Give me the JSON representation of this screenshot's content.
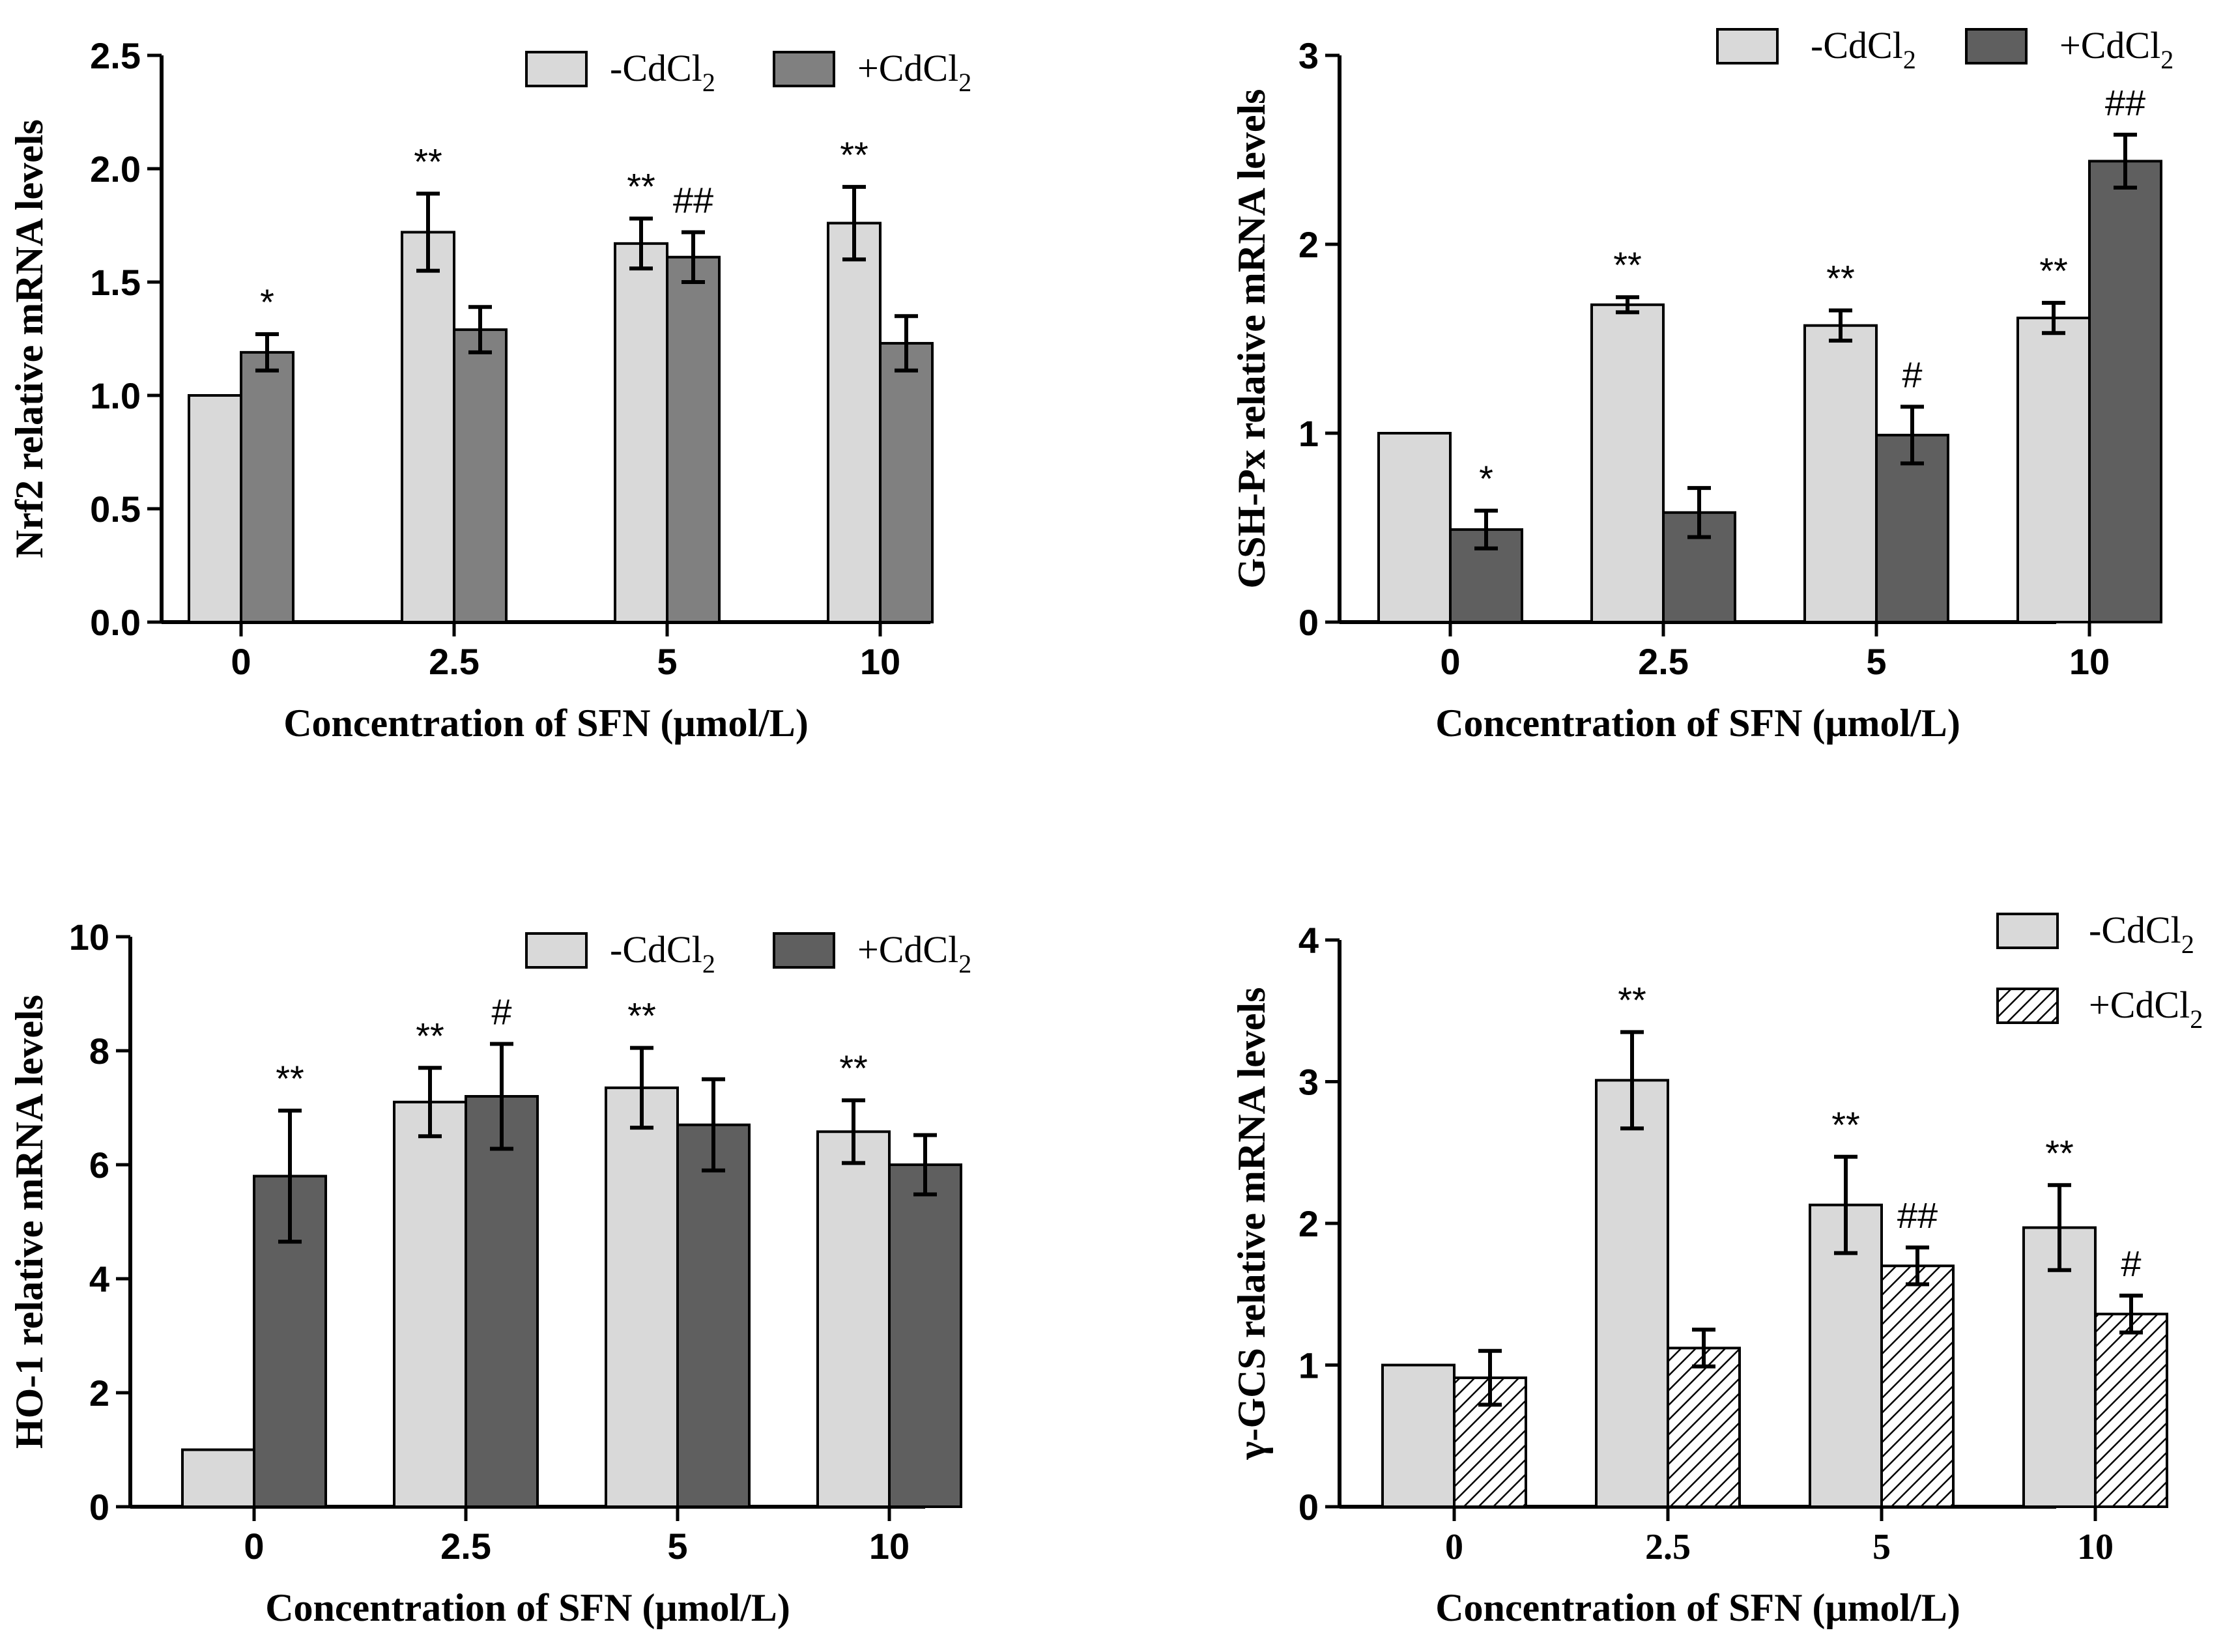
{
  "colors": {
    "light_bar": "#d9d9d9",
    "mid_bar": "#808080",
    "dark_bar": "#5f5f5f",
    "axis": "#000000"
  },
  "chart_data": [
    {
      "id": "nrf2",
      "type": "bar",
      "ylabel": "Nrf2 relative mRNA levels",
      "xlabel": "Concentration of SFN (μmol/L)",
      "categories": [
        "0",
        "2.5",
        "5",
        "10"
      ],
      "ylim": [
        0,
        2.5
      ],
      "yticks": [
        "0.0",
        "0.5",
        "1.0",
        "1.5",
        "2.0",
        "2.5"
      ],
      "ytick_values": [
        0,
        0.5,
        1.0,
        1.5,
        2.0,
        2.5
      ],
      "legend_position": "top-right",
      "series": [
        {
          "name": "-CdCl",
          "sub": "2",
          "style": "light",
          "values": [
            1.0,
            1.72,
            1.67,
            1.76
          ],
          "errors": [
            0,
            0.17,
            0.11,
            0.16
          ],
          "annotations": [
            "",
            "**",
            "**",
            "**"
          ]
        },
        {
          "name": "+CdCl",
          "sub": "2",
          "style": "mid",
          "values": [
            1.19,
            1.29,
            1.61,
            1.23
          ],
          "errors": [
            0.08,
            0.1,
            0.11,
            0.12
          ],
          "annotations": [
            "*",
            "",
            "##",
            ""
          ]
        }
      ]
    },
    {
      "id": "gshpx",
      "type": "bar",
      "ylabel": "GSH-Px relative mRNA levels",
      "xlabel": "Concentration of SFN (μmol/L)",
      "categories": [
        "0",
        "2.5",
        "5",
        "10"
      ],
      "ylim": [
        0,
        3
      ],
      "yticks": [
        "0",
        "1",
        "2",
        "3"
      ],
      "ytick_values": [
        0,
        1,
        2,
        3
      ],
      "legend_position": "top-right",
      "series": [
        {
          "name": "-CdCl",
          "sub": "2",
          "style": "light",
          "values": [
            1.0,
            1.68,
            1.57,
            1.61
          ],
          "errors": [
            0,
            0.04,
            0.08,
            0.08
          ],
          "annotations": [
            "",
            "**",
            "**",
            "**"
          ]
        },
        {
          "name": "+CdCl",
          "sub": "2",
          "style": "dark",
          "values": [
            0.49,
            0.58,
            0.99,
            2.44
          ],
          "errors": [
            0.1,
            0.13,
            0.15,
            0.14
          ],
          "annotations": [
            "*",
            "",
            "#",
            "##"
          ]
        }
      ]
    },
    {
      "id": "ho1",
      "type": "bar",
      "ylabel": "HO-1 relative mRNA levels",
      "xlabel": "Concentration of SFN (μmol/L)",
      "categories": [
        "0",
        "2.5",
        "5",
        "10"
      ],
      "ylim": [
        0,
        10
      ],
      "yticks": [
        "0",
        "2",
        "4",
        "6",
        "8",
        "10"
      ],
      "ytick_values": [
        0,
        2,
        4,
        6,
        8,
        10
      ],
      "legend_position": "top-right",
      "series": [
        {
          "name": "-CdCl",
          "sub": "2",
          "style": "light",
          "values": [
            1.0,
            7.1,
            7.35,
            6.58
          ],
          "errors": [
            0,
            0.6,
            0.7,
            0.55
          ],
          "annotations": [
            "",
            "**",
            "**",
            "**"
          ]
        },
        {
          "name": "+CdCl",
          "sub": "2",
          "style": "dark",
          "values": [
            5.8,
            7.2,
            6.7,
            6.0
          ],
          "errors": [
            1.15,
            0.92,
            0.8,
            0.52
          ],
          "annotations": [
            "**",
            "#",
            "",
            ""
          ]
        }
      ]
    },
    {
      "id": "gcs",
      "type": "bar",
      "ylabel": "γ-GCS relative mRNA levels",
      "xlabel": "Concentration of SFN (μmol/L)",
      "categories": [
        "0",
        "2.5",
        "5",
        "10"
      ],
      "ylim": [
        0,
        4
      ],
      "yticks": [
        "0",
        "1",
        "2",
        "3",
        "4"
      ],
      "ytick_values": [
        0,
        1,
        2,
        3,
        4
      ],
      "legend_position": "top-right",
      "series": [
        {
          "name": "-CdCl",
          "sub": "2",
          "style": "light",
          "values": [
            1.0,
            3.01,
            2.13,
            1.97
          ],
          "errors": [
            0,
            0.34,
            0.34,
            0.3
          ],
          "annotations": [
            "",
            "**",
            "**",
            "**"
          ]
        },
        {
          "name": "+CdCl",
          "sub": "2",
          "style": "hatch",
          "values": [
            0.91,
            1.12,
            1.7,
            1.36
          ],
          "errors": [
            0.19,
            0.13,
            0.13,
            0.13
          ],
          "annotations": [
            "",
            "",
            "##",
            "#"
          ]
        }
      ]
    }
  ]
}
